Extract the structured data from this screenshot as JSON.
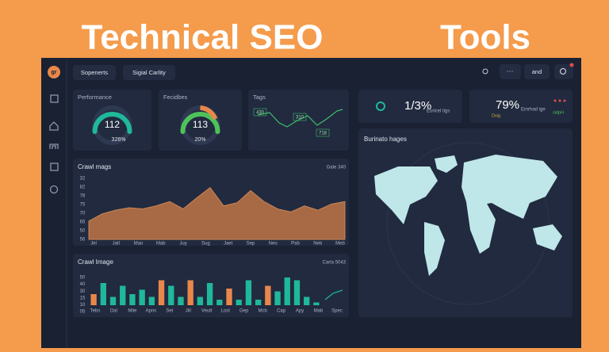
{
  "header": {
    "title_left": "Technical SEO",
    "title_right": "Tools"
  },
  "topbar": {
    "logo": "gr",
    "tabs": [
      "Sopenerts",
      "Sigial Carlity"
    ],
    "menu": "···",
    "button": "and"
  },
  "gauges": [
    {
      "label": "Performance",
      "value": 112,
      "sub": "326%"
    },
    {
      "label": "Fecidbes",
      "value": 113,
      "sub": "20%"
    }
  ],
  "tags": {
    "label": "Tags",
    "markers": [
      "430",
      "310",
      "718"
    ]
  },
  "stats": [
    {
      "value": "1/3%",
      "label": "Euricel tigs"
    },
    {
      "value": "79%",
      "label": "Emrhad ige",
      "tags": [
        "Dxig",
        "sidpH"
      ]
    }
  ],
  "map": {
    "title": "Burinato hages"
  },
  "area_chart": {
    "title": "Crawl mags",
    "note": "Gale 340",
    "ylim": [
      0,
      100
    ],
    "y_labels": [
      "32",
      "82",
      "78",
      "75",
      "70",
      "65",
      "50",
      "56"
    ],
    "x_labels": [
      "Jel",
      "Jatl",
      "Mao",
      "Mab",
      "Juy",
      "Sug",
      "Jaet",
      "Sep",
      "Neo",
      "Pab",
      "Neb",
      "Meb"
    ],
    "values": [
      30,
      42,
      48,
      52,
      50,
      55,
      62,
      50,
      68,
      85,
      55,
      60,
      80,
      62,
      50,
      45,
      55,
      48,
      58,
      62
    ]
  },
  "bar_chart": {
    "title": "Crawl Image",
    "note": "Carla 5043",
    "ylim": [
      0,
      50
    ],
    "y_labels": [
      "50",
      "40",
      "30",
      "15",
      "10",
      "05"
    ],
    "x_labels": [
      "Tebs",
      "Dal",
      "Mile",
      "Apns",
      "Set",
      "Jill",
      "Veutt",
      "Lost",
      "Gep",
      "Mcb",
      "Cap",
      "Apy",
      "Mab",
      "Spec"
    ],
    "values": [
      20,
      40,
      15,
      35,
      20,
      28,
      15,
      45,
      35,
      15,
      45,
      15,
      40,
      10,
      30,
      10,
      45,
      10,
      35,
      25,
      50,
      45,
      15,
      5
    ],
    "colors": [
      "#e8874a",
      "#1fb89a",
      "#1fb89a",
      "#1fb89a",
      "#1fb89a",
      "#1fb89a",
      "#1fb89a",
      "#e8874a",
      "#1fb89a",
      "#1fb89a",
      "#e8874a",
      "#1fb89a",
      "#1fb89a",
      "#1fb89a",
      "#e8874a",
      "#1fb89a",
      "#1fb89a",
      "#1fb89a",
      "#e8874a",
      "#1fb89a",
      "#1fb89a",
      "#1fb89a",
      "#1fb89a",
      "#1fb89a"
    ]
  }
}
